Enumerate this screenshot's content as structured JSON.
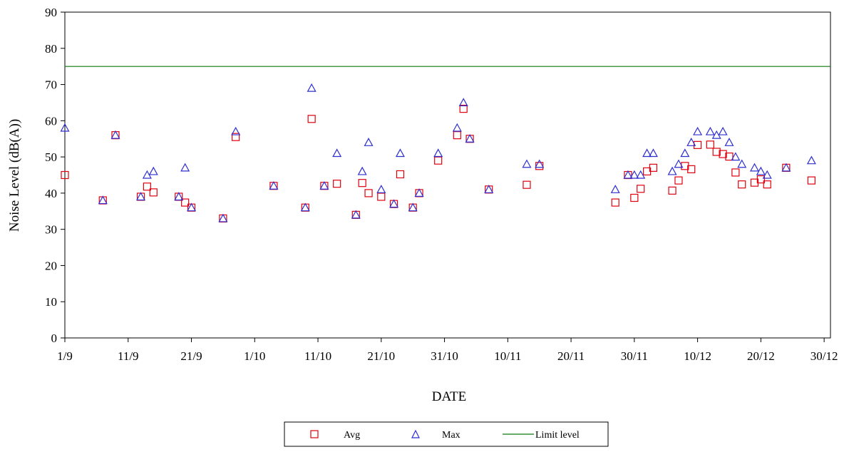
{
  "chart_data": {
    "type": "scatter",
    "title": "",
    "xlabel": "DATE",
    "ylabel": "Noise Level (dB(A))",
    "xlim": [
      "1/9",
      "31/12"
    ],
    "ylim": [
      0,
      90
    ],
    "y_ticks": [
      0,
      10,
      20,
      30,
      40,
      50,
      60,
      70,
      80,
      90
    ],
    "x_ticks": [
      "1/9",
      "11/9",
      "21/9",
      "1/10",
      "11/10",
      "21/10",
      "31/10",
      "10/11",
      "20/11",
      "30/11",
      "10/12",
      "20/12",
      "30/12"
    ],
    "grid": false,
    "legend_position": "bottom",
    "series": [
      {
        "name": "Avg",
        "marker": "square",
        "color": "#e0000e",
        "points": [
          [
            "1/9",
            45
          ],
          [
            "7/9",
            38
          ],
          [
            "9/9",
            56
          ],
          [
            "13/9",
            39
          ],
          [
            "14/9",
            41.8
          ],
          [
            "15/9",
            40.2
          ],
          [
            "19/9",
            39
          ],
          [
            "20/9",
            37.4
          ],
          [
            "21/9",
            36
          ],
          [
            "26/9",
            33
          ],
          [
            "28/9",
            55.5
          ],
          [
            "4/10",
            42
          ],
          [
            "9/10",
            36
          ],
          [
            "10/10",
            60.5
          ],
          [
            "12/10",
            42
          ],
          [
            "14/10",
            42.6
          ],
          [
            "17/10",
            34
          ],
          [
            "18/10",
            42.8
          ],
          [
            "19/10",
            40
          ],
          [
            "21/10",
            39
          ],
          [
            "23/10",
            37
          ],
          [
            "24/10",
            45.2
          ],
          [
            "26/10",
            36
          ],
          [
            "27/10",
            40
          ],
          [
            "30/10",
            49
          ],
          [
            "2/11",
            56
          ],
          [
            "3/11",
            63.3
          ],
          [
            "4/11",
            55
          ],
          [
            "7/11",
            41
          ],
          [
            "13/11",
            42.3
          ],
          [
            "15/11",
            47.5
          ],
          [
            "27/11",
            37.4
          ],
          [
            "29/11",
            45
          ],
          [
            "30/11",
            38.7
          ],
          [
            "1/12",
            41.2
          ],
          [
            "2/12",
            46
          ],
          [
            "3/12",
            47
          ],
          [
            "6/12",
            40.7
          ],
          [
            "7/12",
            43.5
          ],
          [
            "8/12",
            47.5
          ],
          [
            "9/12",
            46.6
          ],
          [
            "10/12",
            53.3
          ],
          [
            "12/12",
            53.4
          ],
          [
            "13/12",
            51.4
          ],
          [
            "14/12",
            50.8
          ],
          [
            "15/12",
            50.1
          ],
          [
            "16/12",
            45.7
          ],
          [
            "17/12",
            42.4
          ],
          [
            "19/12",
            42.9
          ],
          [
            "20/12",
            43.8
          ],
          [
            "21/12",
            42.4
          ],
          [
            "24/12",
            47
          ],
          [
            "28/12",
            43.5
          ]
        ]
      },
      {
        "name": "Max",
        "marker": "triangle",
        "color": "#2f2fd0",
        "points": [
          [
            "1/9",
            58
          ],
          [
            "7/9",
            38
          ],
          [
            "9/9",
            56
          ],
          [
            "13/9",
            39
          ],
          [
            "14/9",
            45
          ],
          [
            "15/9",
            46
          ],
          [
            "19/9",
            39
          ],
          [
            "20/9",
            47
          ],
          [
            "21/9",
            36
          ],
          [
            "26/9",
            33
          ],
          [
            "28/9",
            57
          ],
          [
            "4/10",
            42
          ],
          [
            "9/10",
            36
          ],
          [
            "10/10",
            69
          ],
          [
            "12/10",
            42
          ],
          [
            "14/10",
            51
          ],
          [
            "17/10",
            34
          ],
          [
            "18/10",
            46
          ],
          [
            "19/10",
            54
          ],
          [
            "21/10",
            41
          ],
          [
            "23/10",
            37
          ],
          [
            "24/10",
            51
          ],
          [
            "26/10",
            36
          ],
          [
            "27/10",
            40
          ],
          [
            "30/10",
            51
          ],
          [
            "2/11",
            58
          ],
          [
            "3/11",
            65
          ],
          [
            "4/11",
            55
          ],
          [
            "7/11",
            41
          ],
          [
            "13/11",
            48
          ],
          [
            "15/11",
            48
          ],
          [
            "27/11",
            41
          ],
          [
            "29/11",
            45
          ],
          [
            "30/11",
            45
          ],
          [
            "1/12",
            45
          ],
          [
            "2/12",
            51
          ],
          [
            "3/12",
            51
          ],
          [
            "6/12",
            46
          ],
          [
            "7/12",
            48
          ],
          [
            "8/12",
            51
          ],
          [
            "9/12",
            54
          ],
          [
            "10/12",
            57
          ],
          [
            "12/12",
            57
          ],
          [
            "13/12",
            56
          ],
          [
            "14/12",
            57
          ],
          [
            "15/12",
            54
          ],
          [
            "16/12",
            50
          ],
          [
            "17/12",
            48
          ],
          [
            "19/12",
            47
          ],
          [
            "20/12",
            46
          ],
          [
            "21/12",
            45
          ],
          [
            "24/12",
            47
          ],
          [
            "28/12",
            49
          ]
        ]
      },
      {
        "name": "Limit level",
        "type": "line",
        "color": "#0b7a0b",
        "value": 75
      }
    ]
  }
}
